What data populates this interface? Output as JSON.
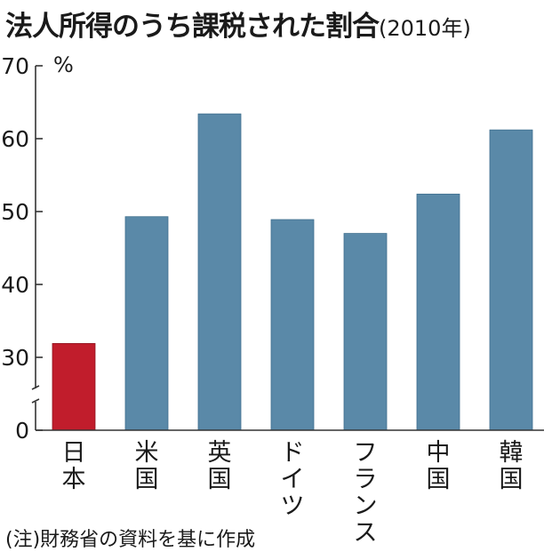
{
  "title": "法人所得のうち課税された割合",
  "subtitle": "(2010年)",
  "chart_data": {
    "type": "bar",
    "categories": [
      "日本",
      "米国",
      "英国",
      "ドイツ",
      "フランス",
      "中国",
      "韓国"
    ],
    "values": [
      31.9,
      49.3,
      63.4,
      48.9,
      47.0,
      52.4,
      61.2
    ],
    "highlight_index": 0,
    "ylabel": "%",
    "ylim": [
      0,
      70
    ],
    "axis_break": true,
    "yticks": [
      0,
      30,
      40,
      50,
      60,
      70
    ],
    "grid": false,
    "legend": "none"
  },
  "colors": {
    "bar": "#5a89a8",
    "highlight": "#c11d2c",
    "axis": "#333333"
  },
  "note": "(注)財務省の資料を基に作成"
}
